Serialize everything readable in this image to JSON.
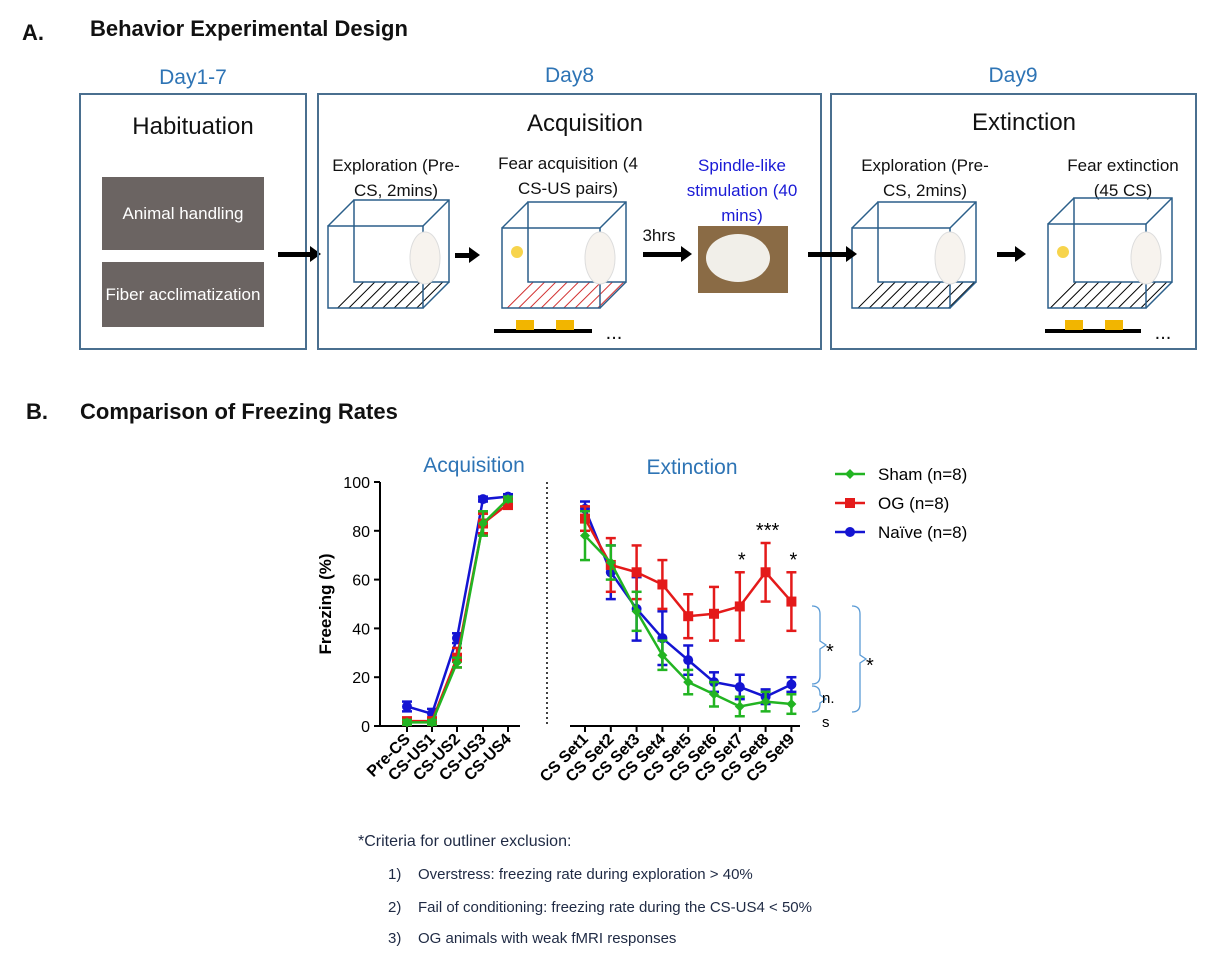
{
  "panelA": {
    "label": "A.",
    "title": "Behavior Experimental Design",
    "days": [
      {
        "label": "Day1-7",
        "stage": "Habituation"
      },
      {
        "label": "Day8",
        "stage": "Acquisition"
      },
      {
        "label": "Day9",
        "stage": "Extinction"
      }
    ],
    "habituation_items": [
      "Animal handling",
      "Fiber acclimatization"
    ],
    "acq_steps": {
      "exploration": "Exploration (Pre-CS, 2mins)",
      "fear_acquisition": "Fear acquisition (4 CS-US pairs)",
      "spindle": "Spindle-like stimulation (40 mins)",
      "delay": "3hrs"
    },
    "ext_steps": {
      "exploration": "Exploration (Pre-CS, 2mins)",
      "fear_extinction": "Fear extinction (45 CS)"
    },
    "ellipsis": "..."
  },
  "panelB": {
    "label": "B.",
    "title": "Comparison of Freezing Rates"
  },
  "chart_data": {
    "type": "line",
    "title": "",
    "section_labels": [
      "Acquisition",
      "Extinction"
    ],
    "ylabel": "Freezing (%)",
    "ylim": [
      0,
      100
    ],
    "yticks": [
      0,
      20,
      40,
      60,
      80,
      100
    ],
    "acquisition_categories": [
      "Pre-CS",
      "CS-US1",
      "CS-US2",
      "CS-US3",
      "CS-US4"
    ],
    "extinction_categories": [
      "CS Set1",
      "CS Set2",
      "CS Set3",
      "CS Set4",
      "CS Set5",
      "CS Set6",
      "CS Set7",
      "CS Set8",
      "CS Set9"
    ],
    "series": [
      {
        "name": "Sham (n=8)",
        "color": "#22b422",
        "marker": "diamond",
        "acquisition": [
          1.5,
          1.5,
          26,
          83,
          93
        ],
        "acquisition_err": [
          1,
          1,
          2,
          5,
          1
        ],
        "extinction": [
          78,
          67,
          47,
          29,
          18,
          13,
          8,
          10,
          9
        ],
        "extinction_err": [
          10,
          7,
          8,
          6,
          5,
          5,
          4,
          4,
          4
        ]
      },
      {
        "name": "OG (n=8)",
        "color": "#e41a1a",
        "marker": "square",
        "acquisition": [
          2,
          2,
          28,
          83,
          91
        ],
        "acquisition_err": [
          1,
          1,
          4,
          4,
          2
        ],
        "extinction": [
          85,
          66,
          63,
          58,
          45,
          46,
          49,
          63,
          51
        ],
        "extinction_err": [
          5,
          11,
          11,
          10,
          9,
          11,
          14,
          12,
          12
        ]
      },
      {
        "name": "Naïve (n=8)",
        "color": "#1414d2",
        "marker": "circle",
        "acquisition": [
          8,
          5,
          36,
          93,
          94
        ],
        "acquisition_err": [
          2,
          2,
          2,
          1,
          1
        ],
        "extinction": [
          89,
          63,
          48,
          36,
          27,
          18,
          16,
          12,
          17
        ],
        "extinction_err": [
          3,
          11,
          13,
          11,
          6,
          4,
          5,
          3,
          3
        ]
      }
    ],
    "significance_labels": [
      {
        "category": "CS Set7",
        "text": "*"
      },
      {
        "category": "CS Set8",
        "text": "***"
      },
      {
        "category": "CS Set9",
        "text": "*"
      }
    ],
    "bracket_labels": {
      "og_vs_naive": "*",
      "sham_vs_naive": "n. s",
      "og_vs_sham": "*"
    }
  },
  "criteria": {
    "heading": "*Criteria for outliner exclusion:",
    "items": [
      {
        "num": "1)",
        "text": "Overstress: freezing rate during exploration > 40%"
      },
      {
        "num": "2)",
        "text": "Fail of conditioning: freezing rate during the CS-US4 < 50%"
      },
      {
        "num": "3)",
        "text": "OG animals with weak fMRI responses"
      }
    ]
  },
  "colors": {
    "box_border": "#4a6f8f",
    "day_label": "#2e74b5",
    "handling_bg": "#6b6462",
    "pulse": "#f2b500"
  }
}
